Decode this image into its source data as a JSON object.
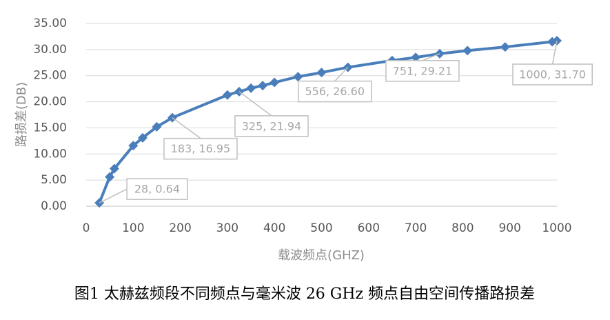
{
  "chart_data": {
    "type": "line",
    "y_label": "路损差(DB)",
    "x_label": "载波频点(GHZ)",
    "caption": "图1 太赫兹频段不同频点与毫米波 26 GHz 频点自由空间传播路损差",
    "x": [
      28,
      50,
      60,
      100,
      120,
      150,
      183,
      300,
      325,
      350,
      375,
      400,
      450,
      500,
      556,
      650,
      700,
      751,
      810,
      890,
      990,
      1000
    ],
    "values": [
      0.64,
      5.6,
      7.2,
      11.6,
      13.1,
      15.2,
      16.95,
      21.3,
      21.94,
      22.6,
      23.1,
      23.7,
      24.8,
      25.6,
      26.6,
      27.9,
      28.5,
      29.21,
      29.8,
      30.5,
      31.5,
      31.7
    ],
    "value_labels": [
      "28, 0.64",
      null,
      null,
      null,
      null,
      null,
      "183, 16.95",
      null,
      "325, 21.94",
      null,
      null,
      null,
      null,
      null,
      "556, 26.60",
      null,
      null,
      "751, 29.21",
      null,
      null,
      null,
      "1000, 31.70"
    ],
    "color": "#4a7ebb",
    "xlim": [
      0,
      1000
    ],
    "xticks": [
      0,
      100,
      200,
      300,
      400,
      500,
      600,
      700,
      800,
      900,
      1000
    ],
    "ylim": [
      0,
      35
    ],
    "yticks": [
      {
        "value": 0,
        "label": "0.00"
      },
      {
        "value": 5,
        "label": "5.00"
      },
      {
        "value": 10,
        "label": "10.00"
      },
      {
        "value": 15,
        "label": "15.00"
      },
      {
        "value": 20,
        "label": "20.00"
      },
      {
        "value": 25,
        "label": "25.00"
      },
      {
        "value": 30,
        "label": "30.00"
      },
      {
        "value": 35,
        "label": "35.00"
      }
    ],
    "grid": true
  }
}
